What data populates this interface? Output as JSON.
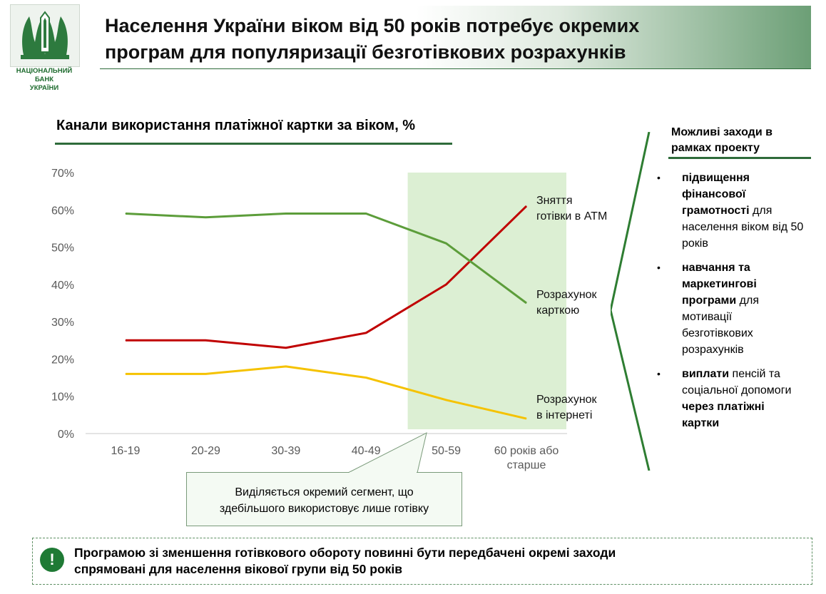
{
  "logo": {
    "line1": "НАЦІОНАЛЬНИЙ",
    "line2": "БАНК",
    "line3": "УКРАЇНИ"
  },
  "header": {
    "title_line1": "Населення України віком від 50 років потребує окремих",
    "title_line2": "програм для популяризації безготівкових розрахунків"
  },
  "chart_data": {
    "type": "line",
    "title": "Канали використання платіжної картки за віком, %",
    "categories": [
      "16-19",
      "20-29",
      "30-39",
      "40-49",
      "50-59",
      "60 років або старше"
    ],
    "category_lines": [
      [
        "16-19"
      ],
      [
        "20-29"
      ],
      [
        "30-39"
      ],
      [
        "40-49"
      ],
      [
        "50-59"
      ],
      [
        "60 років або",
        "старше"
      ]
    ],
    "yticks": [
      "0%",
      "10%",
      "20%",
      "30%",
      "40%",
      "50%",
      "60%",
      "70%"
    ],
    "ylim": [
      0,
      70
    ],
    "grid": false,
    "highlight_range": [
      "50-59",
      "60 років або старше"
    ],
    "series": [
      {
        "name": "Зняття готівки в АТМ",
        "label_lines": [
          "Зняття",
          "готівки в АТМ"
        ],
        "color": "#c00000",
        "values": [
          25,
          25,
          23,
          27,
          40,
          61
        ]
      },
      {
        "name": "Розрахунок карткою",
        "label_lines": [
          "Розрахунок",
          "карткою"
        ],
        "color": "#5c9d3a",
        "values": [
          59,
          58,
          59,
          59,
          51,
          35
        ]
      },
      {
        "name": "Розрахунок в інтернеті",
        "label_lines": [
          "Розрахунок",
          "в інтернеті"
        ],
        "color": "#f5c200",
        "values": [
          16,
          16,
          18,
          15,
          9,
          4
        ]
      }
    ]
  },
  "measures": {
    "title_line1": "Можливі заходи в",
    "title_line2": "рамках проекту",
    "items": [
      {
        "bold": "підвищення фінансової грамотності",
        "rest": " для населення віком від 50 років"
      },
      {
        "bold": "навчання та маркетингові програми",
        "rest": " для мотивації безготівкових розрахунків"
      },
      {
        "bold": "виплати",
        "rest": " пенсій та соціальної допомоги ",
        "bold2": "через платіжні картки"
      }
    ]
  },
  "callout": {
    "line1": "Виділяється окремий сегмент, що",
    "line2": "здебільшого використовує лише готівку"
  },
  "conclusion": {
    "icon": "!",
    "line1": "Програмою зі зменшення готівкового обороту повинні бути передбачені окремі заходи",
    "line2": "спрямовані для населення вікової групи від 50 років"
  },
  "colors": {
    "accent_green": "#2e6b3a",
    "highlight_fill": "#dcefd3"
  }
}
